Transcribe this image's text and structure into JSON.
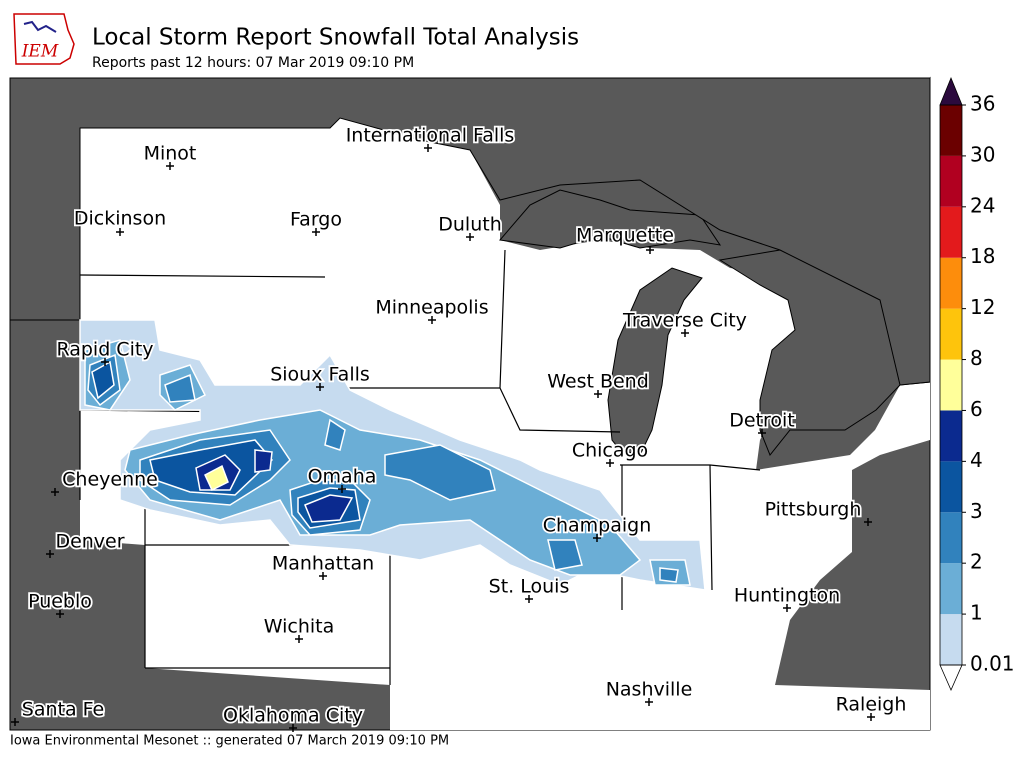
{
  "header": {
    "title": "Local Storm Report Snowfall Total Analysis",
    "subtitle": "Reports past 12 hours: 07 Mar 2019 09:10 PM",
    "logo": "IEM"
  },
  "cities": [
    "Minot",
    "International Falls",
    "Dickinson",
    "Fargo",
    "Duluth",
    "Marquette",
    "Minneapolis",
    "Traverse City",
    "Rapid City",
    "Sioux Falls",
    "West Bend",
    "Detroit",
    "Chicago",
    "Cheyenne",
    "Omaha",
    "Pittsburgh",
    "Champaign",
    "Denver",
    "Manhattan",
    "St. Louis",
    "Huntington",
    "Pueblo",
    "Wichita",
    "Nashville",
    "Santa Fe",
    "Oklahoma City",
    "Raleigh"
  ],
  "colorbar": {
    "levels": [
      0.01,
      1,
      2,
      3,
      4,
      6,
      8,
      12,
      18,
      24,
      30,
      36
    ],
    "colors": [
      "#c6dbef",
      "#6baed6",
      "#3182bd",
      "#0b55a0",
      "#0b2a8f",
      "#ffff9a",
      "#fec40c",
      "#fd8d0c",
      "#e31a1c",
      "#b10020",
      "#6b0000"
    ],
    "over_color": "#2b0a3d",
    "under_color": "#ffffff"
  },
  "footer": "Iowa Environmental Mesonet :: generated 07 March 2019 09:10 PM"
}
